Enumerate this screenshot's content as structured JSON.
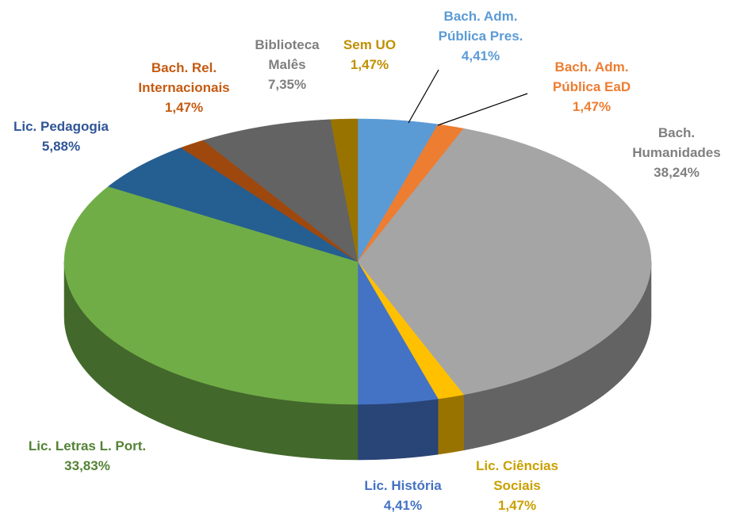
{
  "chart_data": {
    "type": "pie3d",
    "categories": [
      "Bach. Adm. Pública Pres.",
      "Bach. Adm. Pública EaD",
      "Bach. Humanidades",
      "Lic. Ciências Sociais",
      "Lic. História",
      "Lic. Letras L. Port.",
      "Lic. Pedagogia",
      "Bach. Rel. Internacionais",
      "Biblioteca Malês",
      "Sem UO"
    ],
    "values": [
      4.41,
      1.47,
      38.24,
      1.47,
      4.41,
      33.83,
      5.88,
      1.47,
      7.35,
      1.47
    ],
    "value_labels": [
      "4,41%",
      "1,47%",
      "38,24%",
      "1,47%",
      "4,41%",
      "33,83%",
      "5,88%",
      "1,47%",
      "7,35%",
      "1,47%"
    ],
    "colors": [
      "#5b9bd5",
      "#ed7d31",
      "#a5a5a5",
      "#ffc000",
      "#4472c4",
      "#70ad47",
      "#255e91",
      "#9e480e",
      "#636363",
      "#997300"
    ],
    "label_colors": [
      "#5b9bd5",
      "#ed7d31",
      "#7f7f7f",
      "#c9a000",
      "#4472c4",
      "#548235",
      "#2f5597",
      "#c55a11",
      "#7f7f7f",
      "#bf9000"
    ]
  }
}
